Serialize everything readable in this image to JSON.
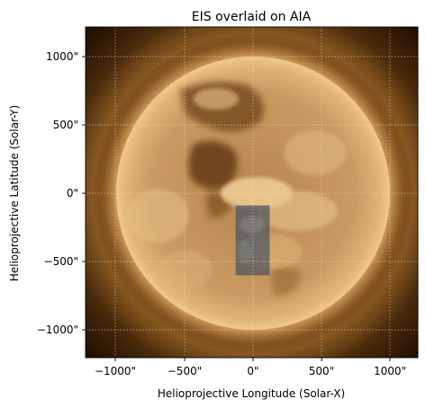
{
  "title": "EIS overlaid on AIA",
  "x_axis": {
    "label": "Helioprojective Longitude (Solar-X)",
    "ticks": [
      "−1000\"",
      "−500\"",
      "0\"",
      "500\"",
      "1000\""
    ]
  },
  "y_axis": {
    "label": "Helioprojective Latitude (Solar-Y)",
    "ticks": [
      "1000\"",
      "500\"",
      "0\"",
      "−500\"",
      "−1000\""
    ]
  },
  "grid": true,
  "image": {
    "base_layer": "AIA solar disk image",
    "overlay": "EIS raster",
    "colors": {
      "disk_core": "#c89a63",
      "limb": "#d8a66a",
      "corona": "#8a5a22",
      "background": "#140800",
      "overlay_tint": "#4a5460"
    }
  }
}
